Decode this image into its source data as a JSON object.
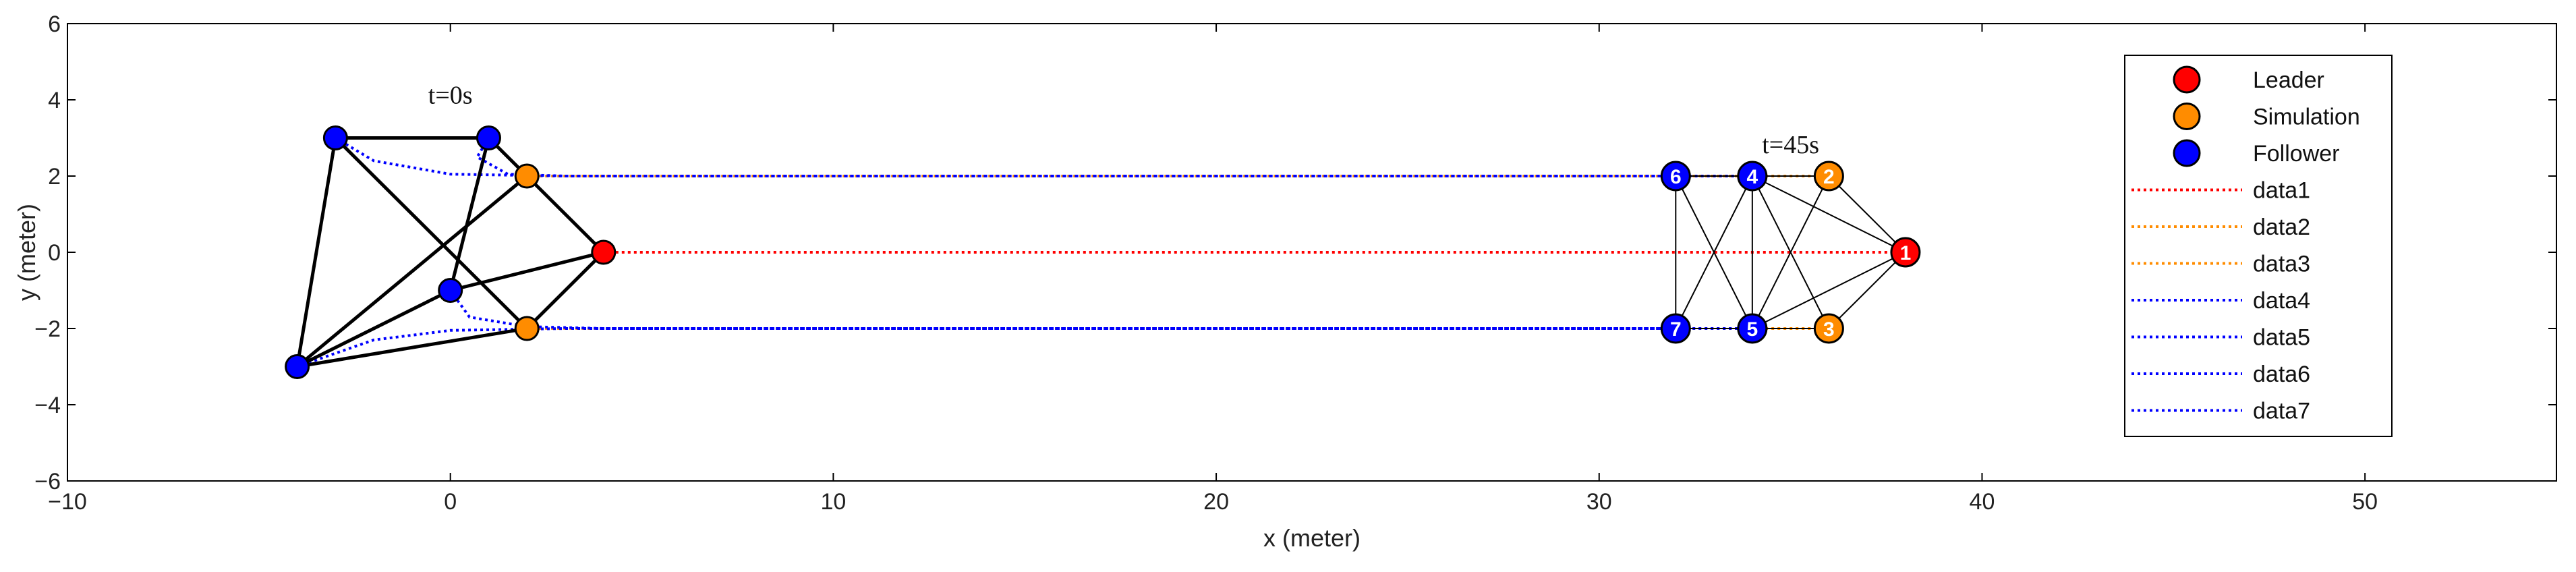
{
  "chart_data": {
    "type": "scatter",
    "title": "",
    "xlabel": "x (meter)",
    "ylabel": "y (meter)",
    "xlim": [
      -10,
      55
    ],
    "ylim": [
      -6,
      6
    ],
    "x_ticks": [
      -10,
      0,
      10,
      20,
      30,
      40,
      50
    ],
    "y_ticks": [
      -6,
      -4,
      -2,
      0,
      2,
      4,
      6
    ],
    "x_tick_labels": [
      "−10",
      "0",
      "10",
      "20",
      "30",
      "40",
      "50"
    ],
    "y_tick_labels": [
      "−6",
      "−4",
      "−2",
      "0",
      "2",
      "4",
      "6"
    ],
    "grid": false,
    "legend_position": "top-right",
    "colors": {
      "leader": "#ff0000",
      "simulation": "#ff8c00",
      "follower": "#0000ff",
      "edge": "#000000"
    },
    "annotations": [
      {
        "text": "t=0s",
        "x": 0,
        "y": 3.9
      },
      {
        "text": "t=45s",
        "x": 35,
        "y": 2.6
      }
    ],
    "initial_positions": [
      {
        "role": "leader",
        "x": 4,
        "y": 0
      },
      {
        "role": "simulation",
        "x": 2,
        "y": 2
      },
      {
        "role": "simulation",
        "x": 2,
        "y": -2
      },
      {
        "role": "follower",
        "x": -3,
        "y": 3
      },
      {
        "role": "follower",
        "x": 1,
        "y": 3
      },
      {
        "role": "follower",
        "x": 0,
        "y": -1
      },
      {
        "role": "follower",
        "x": -4,
        "y": -3
      }
    ],
    "initial_edges": [
      [
        3,
        4
      ],
      [
        3,
        2
      ],
      [
        3,
        6
      ],
      [
        4,
        1
      ],
      [
        4,
        5
      ],
      [
        1,
        0
      ],
      [
        5,
        0
      ],
      [
        5,
        6
      ],
      [
        6,
        2
      ],
      [
        6,
        1
      ],
      [
        2,
        0
      ]
    ],
    "final_positions": [
      {
        "id": "1",
        "role": "leader",
        "x": 38,
        "y": 0
      },
      {
        "id": "2",
        "role": "simulation",
        "x": 36,
        "y": 2
      },
      {
        "id": "3",
        "role": "simulation",
        "x": 36,
        "y": -2
      },
      {
        "id": "4",
        "role": "follower",
        "x": 34,
        "y": 2
      },
      {
        "id": "5",
        "role": "follower",
        "x": 34,
        "y": -2
      },
      {
        "id": "6",
        "role": "follower",
        "x": 32,
        "y": 2
      },
      {
        "id": "7",
        "role": "follower",
        "x": 32,
        "y": -2
      }
    ],
    "final_edges": [
      [
        0,
        1
      ],
      [
        0,
        2
      ],
      [
        0,
        3
      ],
      [
        0,
        4
      ],
      [
        1,
        3
      ],
      [
        1,
        4
      ],
      [
        2,
        3
      ],
      [
        2,
        4
      ],
      [
        3,
        5
      ],
      [
        3,
        6
      ],
      [
        3,
        4
      ],
      [
        4,
        5
      ],
      [
        4,
        6
      ],
      [
        5,
        6
      ]
    ],
    "series": [
      {
        "name": "data1",
        "style": "dotted",
        "color": "#ff0000",
        "points": [
          [
            4,
            0
          ],
          [
            38,
            0
          ]
        ]
      },
      {
        "name": "data2",
        "style": "dotted",
        "color": "#ff8c00",
        "points": [
          [
            2,
            2
          ],
          [
            36,
            2
          ]
        ]
      },
      {
        "name": "data3",
        "style": "dotted",
        "color": "#ff8c00",
        "points": [
          [
            2,
            -2
          ],
          [
            36,
            -2
          ]
        ]
      },
      {
        "name": "data4",
        "style": "dotted",
        "color": "#0000ff",
        "points": [
          [
            1,
            3
          ],
          [
            0.7,
            2.5
          ],
          [
            1.5,
            2.05
          ],
          [
            3,
            2
          ],
          [
            34,
            2
          ]
        ]
      },
      {
        "name": "data5",
        "style": "dotted",
        "color": "#0000ff",
        "points": [
          [
            0,
            -1
          ],
          [
            0.5,
            -1.7
          ],
          [
            2,
            -1.95
          ],
          [
            4,
            -2
          ],
          [
            34,
            -2
          ]
        ]
      },
      {
        "name": "data6",
        "style": "dotted",
        "color": "#0000ff",
        "points": [
          [
            -3,
            3
          ],
          [
            -2,
            2.4
          ],
          [
            0,
            2.05
          ],
          [
            3,
            2
          ],
          [
            32,
            2
          ]
        ]
      },
      {
        "name": "data7",
        "style": "dotted",
        "color": "#0000ff",
        "points": [
          [
            -4,
            -3
          ],
          [
            -2,
            -2.3
          ],
          [
            0,
            -2.05
          ],
          [
            3,
            -2
          ],
          [
            32,
            -2
          ]
        ]
      }
    ],
    "legend": [
      {
        "label": "Leader",
        "kind": "marker",
        "color": "#ff0000"
      },
      {
        "label": "Simulation",
        "kind": "marker",
        "color": "#ff8c00"
      },
      {
        "label": "Follower",
        "kind": "marker",
        "color": "#0000ff"
      },
      {
        "label": "data1",
        "kind": "line",
        "color": "#ff0000"
      },
      {
        "label": "data2",
        "kind": "line",
        "color": "#ff8c00"
      },
      {
        "label": "data3",
        "kind": "line",
        "color": "#ff8c00"
      },
      {
        "label": "data4",
        "kind": "line",
        "color": "#0000ff"
      },
      {
        "label": "data5",
        "kind": "line",
        "color": "#0000ff"
      },
      {
        "label": "data6",
        "kind": "line",
        "color": "#0000ff"
      },
      {
        "label": "data7",
        "kind": "line",
        "color": "#0000ff"
      }
    ]
  }
}
